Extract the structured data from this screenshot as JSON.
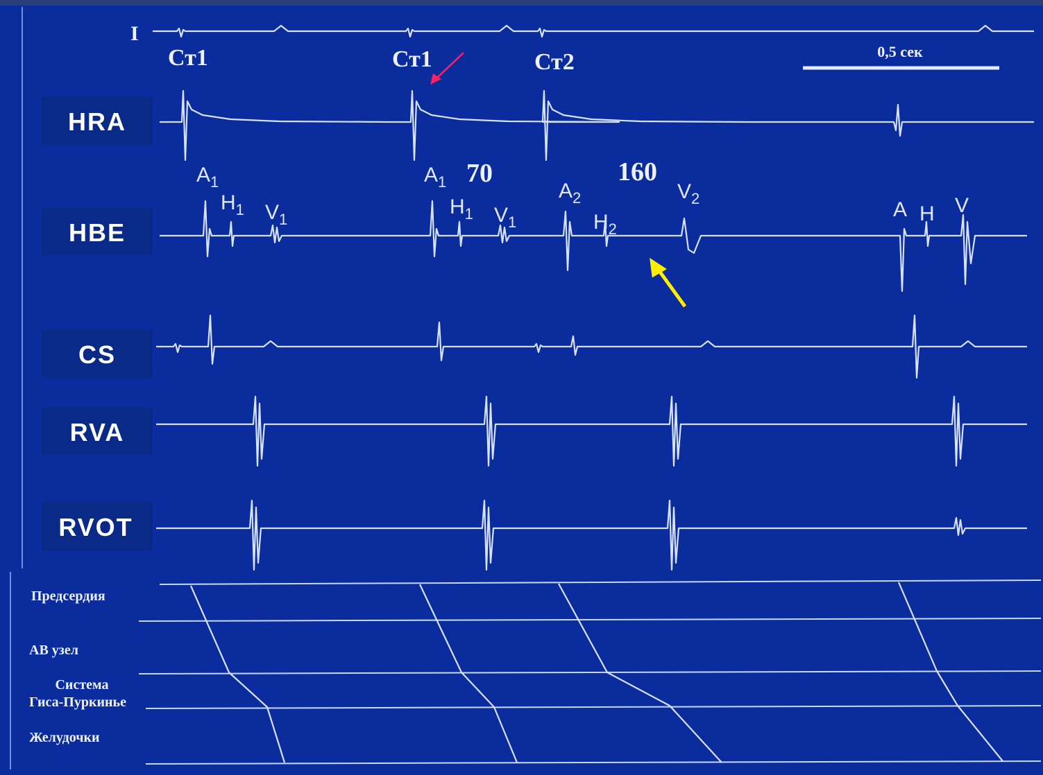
{
  "leads": [
    "I",
    "HRA",
    "HBE",
    "CS",
    "RVA",
    "RVOT"
  ],
  "stimuli": [
    "Ст1",
    "Ст1",
    "Ст2"
  ],
  "scale": "0,5 сек",
  "intervals": [
    "70",
    "160"
  ],
  "hbe_labels": [
    {
      "base": "A",
      "sub": "1"
    },
    {
      "base": "H",
      "sub": "1"
    },
    {
      "base": "V",
      "sub": "1"
    },
    {
      "base": "A",
      "sub": "1"
    },
    {
      "base": "H",
      "sub": "1"
    },
    {
      "base": "V",
      "sub": "1"
    },
    {
      "base": "A",
      "sub": "2"
    },
    {
      "base": "H",
      "sub": "2"
    },
    {
      "base": "V",
      "sub": "2"
    },
    {
      "base": "A",
      "sub": ""
    },
    {
      "base": "H",
      "sub": ""
    },
    {
      "base": "V",
      "sub": ""
    }
  ],
  "ladder": [
    [
      "Предсердия"
    ],
    [
      "АВ  узел"
    ],
    [
      "Система",
      "Гиса-Пуркинье"
    ],
    [
      "Желудочки"
    ]
  ]
}
